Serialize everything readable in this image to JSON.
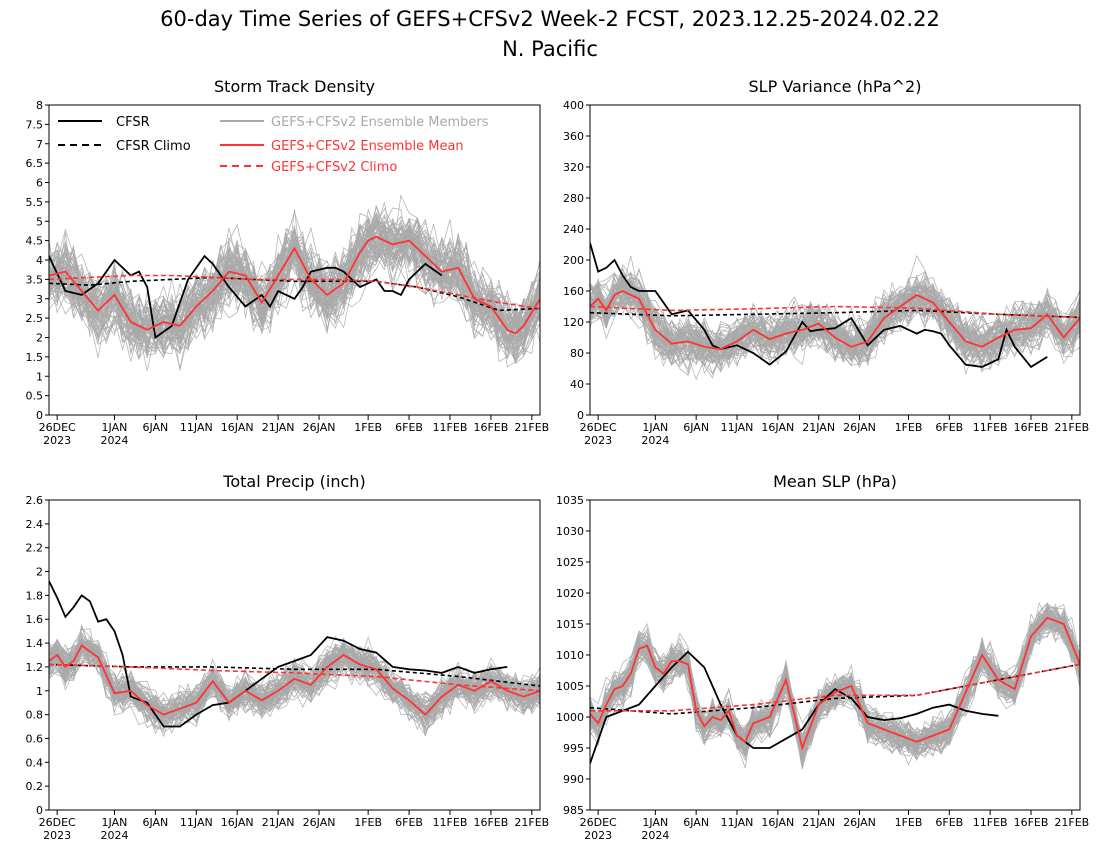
{
  "title": {
    "line1": "60-day Time Series of GEFS+CFSv2 Week-2 FCST, 2023.12.25-2024.02.22",
    "line2": "N. Pacific"
  },
  "x_axis": {
    "tick_days": [
      1,
      8,
      13,
      18,
      23,
      28,
      33,
      39,
      44,
      49,
      54,
      59
    ],
    "tick_labels": [
      "26DEC",
      "1JAN",
      "6JAN",
      "11JAN",
      "16JAN",
      "21JAN",
      "26JAN",
      "1FEB",
      "6FEB",
      "11FEB",
      "16FEB",
      "21FEB"
    ],
    "year_labels": [
      {
        "day": 1,
        "text": "2023"
      },
      {
        "day": 8,
        "text": "2024"
      }
    ]
  },
  "legend": {
    "cfsr": "CFSR",
    "cfsr_climo": "CFSR Climo",
    "members": "GEFS+CFSv2 Ensemble Members",
    "ens_mean": "GEFS+CFSv2 Ensemble Mean",
    "gefs_climo": "GEFS+CFSv2 Climo"
  },
  "colors": {
    "cfsr": "#000000",
    "members": "#a9a9a9",
    "ens_mean": "#ff3333"
  },
  "chart_data": [
    {
      "id": "storm",
      "type": "line",
      "title": "Storm Track Density",
      "ylim": [
        0,
        8
      ],
      "yticks": [
        "0",
        "0.5",
        "1",
        "1.5",
        "2",
        "2.5",
        "3",
        "3.5",
        "4",
        "4.5",
        "5",
        "5.5",
        "6",
        "6.5",
        "7",
        "7.5",
        "8"
      ],
      "x_unit": "day index from 2023-12-25",
      "series": [
        {
          "name": "CFSR",
          "style": "solid-black",
          "x": [
            0,
            2,
            4,
            6,
            8,
            10,
            11,
            12,
            13,
            15,
            17,
            19,
            20,
            22,
            24,
            26,
            27,
            28,
            30,
            31,
            32,
            34,
            35,
            36,
            38,
            40,
            41,
            42,
            43,
            44,
            46,
            48
          ],
          "y": [
            4.1,
            3.2,
            3.1,
            3.4,
            4.0,
            3.6,
            3.7,
            3.3,
            2.0,
            2.3,
            3.5,
            4.1,
            3.9,
            3.3,
            2.8,
            3.1,
            2.8,
            3.2,
            3.0,
            3.3,
            3.7,
            3.8,
            3.8,
            3.7,
            3.3,
            3.5,
            3.2,
            3.2,
            3.1,
            3.5,
            3.9,
            3.6
          ]
        },
        {
          "name": "CFSR Climo",
          "style": "dashed-black",
          "x": [
            0,
            5,
            10,
            15,
            20,
            25,
            30,
            35,
            40,
            45,
            50,
            55,
            60
          ],
          "y": [
            3.4,
            3.35,
            3.45,
            3.5,
            3.55,
            3.5,
            3.45,
            3.45,
            3.45,
            3.3,
            3.05,
            2.7,
            2.75
          ]
        },
        {
          "name": "GEFS+CFSv2 Ensemble Mean",
          "style": "solid-red",
          "x": [
            0,
            2,
            4,
            6,
            8,
            10,
            12,
            14,
            16,
            18,
            20,
            22,
            24,
            26,
            28,
            30,
            32,
            34,
            36,
            38,
            39,
            40,
            42,
            44,
            46,
            48,
            50,
            52,
            54,
            56,
            57,
            58,
            60
          ],
          "y": [
            3.6,
            3.7,
            3.2,
            2.7,
            3.1,
            2.4,
            2.2,
            2.4,
            2.3,
            2.8,
            3.2,
            3.7,
            3.6,
            2.9,
            3.6,
            4.3,
            3.5,
            3.1,
            3.4,
            4.2,
            4.5,
            4.6,
            4.4,
            4.5,
            4.1,
            3.7,
            3.8,
            3.0,
            2.8,
            2.2,
            2.1,
            2.3,
            3.0
          ]
        },
        {
          "name": "GEFS+CFSv2 Climo",
          "style": "dashed-red",
          "x": [
            0,
            5,
            10,
            15,
            20,
            25,
            30,
            35,
            40,
            45,
            50,
            55,
            60
          ],
          "y": [
            3.5,
            3.55,
            3.6,
            3.6,
            3.55,
            3.5,
            3.5,
            3.5,
            3.45,
            3.3,
            3.1,
            2.9,
            2.75
          ]
        }
      ]
    },
    {
      "id": "slp_var",
      "type": "line",
      "title": "SLP Variance (hPa^2)",
      "ylim": [
        0,
        400
      ],
      "yticks": [
        "0",
        "40",
        "80",
        "120",
        "160",
        "200",
        "240",
        "280",
        "320",
        "360",
        "400"
      ],
      "x_unit": "day index from 2023-12-25",
      "series": [
        {
          "name": "CFSR",
          "style": "solid-black",
          "x": [
            0,
            1,
            2,
            3,
            4,
            5,
            6,
            8,
            9,
            10,
            12,
            14,
            15,
            16,
            18,
            20,
            22,
            24,
            26,
            27,
            28,
            30,
            32,
            34,
            36,
            38,
            40,
            41,
            42,
            43,
            44,
            46,
            48,
            50,
            51,
            52,
            54,
            56
          ],
          "y": [
            222,
            185,
            190,
            200,
            180,
            165,
            160,
            160,
            145,
            130,
            135,
            110,
            90,
            85,
            90,
            80,
            65,
            82,
            120,
            108,
            110,
            112,
            125,
            90,
            110,
            115,
            105,
            110,
            108,
            105,
            90,
            65,
            62,
            72,
            110,
            88,
            62,
            75
          ]
        },
        {
          "name": "CFSR Climo",
          "style": "dashed-black",
          "x": [
            0,
            10,
            20,
            30,
            40,
            50,
            60
          ],
          "y": [
            132,
            128,
            130,
            132,
            135,
            130,
            126
          ]
        },
        {
          "name": "GEFS+CFSv2 Ensemble Mean",
          "style": "solid-red",
          "x": [
            0,
            1,
            2,
            3,
            4,
            6,
            8,
            10,
            12,
            14,
            16,
            18,
            20,
            22,
            24,
            26,
            28,
            30,
            32,
            34,
            36,
            38,
            40,
            42,
            44,
            46,
            48,
            50,
            52,
            54,
            56,
            58,
            60
          ],
          "y": [
            140,
            150,
            135,
            155,
            160,
            150,
            110,
            92,
            95,
            88,
            85,
            95,
            110,
            98,
            105,
            110,
            118,
            100,
            88,
            95,
            125,
            140,
            155,
            145,
            120,
            95,
            88,
            100,
            110,
            112,
            130,
            100,
            125
          ]
        },
        {
          "name": "GEFS+CFSv2 Climo",
          "style": "dashed-red",
          "x": [
            0,
            10,
            20,
            30,
            40,
            50,
            60
          ],
          "y": [
            140,
            135,
            137,
            140,
            138,
            130,
            126
          ]
        }
      ]
    },
    {
      "id": "precip",
      "type": "line",
      "title": "Total Precip (inch)",
      "ylim": [
        0,
        2.6
      ],
      "yticks": [
        "0",
        "0.2",
        "0.4",
        "0.6",
        "0.8",
        "1",
        "1.2",
        "1.4",
        "1.6",
        "1.8",
        "2",
        "2.2",
        "2.4",
        "2.6"
      ],
      "x_unit": "day index from 2023-12-25",
      "series": [
        {
          "name": "CFSR",
          "style": "solid-black",
          "x": [
            0,
            1,
            2,
            3,
            4,
            5,
            6,
            7,
            8,
            9,
            10,
            12,
            14,
            16,
            18,
            20,
            22,
            24,
            26,
            28,
            30,
            32,
            34,
            36,
            38,
            40,
            42,
            44,
            46,
            48,
            50,
            52,
            54,
            56
          ],
          "y": [
            1.92,
            1.78,
            1.62,
            1.7,
            1.8,
            1.75,
            1.58,
            1.6,
            1.5,
            1.3,
            0.95,
            0.9,
            0.7,
            0.7,
            0.8,
            0.88,
            0.9,
            1.0,
            1.1,
            1.2,
            1.25,
            1.3,
            1.45,
            1.42,
            1.35,
            1.32,
            1.2,
            1.18,
            1.17,
            1.15,
            1.2,
            1.15,
            1.18,
            1.2
          ]
        },
        {
          "name": "CFSR Climo",
          "style": "dashed-black",
          "x": [
            0,
            10,
            20,
            30,
            40,
            50,
            60
          ],
          "y": [
            1.22,
            1.2,
            1.2,
            1.18,
            1.18,
            1.12,
            1.04
          ]
        },
        {
          "name": "GEFS+CFSv2 Ensemble Mean",
          "style": "solid-red",
          "x": [
            0,
            1,
            2,
            3,
            4,
            6,
            8,
            10,
            12,
            14,
            16,
            18,
            20,
            22,
            24,
            26,
            28,
            30,
            32,
            34,
            36,
            38,
            40,
            42,
            44,
            46,
            48,
            50,
            52,
            54,
            56,
            58,
            60
          ],
          "y": [
            1.25,
            1.3,
            1.2,
            1.25,
            1.38,
            1.28,
            0.98,
            1.0,
            0.88,
            0.8,
            0.85,
            0.9,
            1.08,
            0.9,
            1.0,
            0.92,
            1.0,
            1.1,
            1.05,
            1.2,
            1.3,
            1.22,
            1.18,
            1.02,
            0.92,
            0.8,
            0.95,
            1.05,
            1.0,
            1.08,
            1.0,
            0.95,
            1.0
          ]
        },
        {
          "name": "GEFS+CFSv2 Climo",
          "style": "dashed-red",
          "x": [
            0,
            10,
            20,
            30,
            40,
            50,
            60
          ],
          "y": [
            1.22,
            1.2,
            1.17,
            1.15,
            1.12,
            1.05,
            1.0
          ]
        }
      ]
    },
    {
      "id": "mean_slp",
      "type": "line",
      "title": "Mean SLP (hPa)",
      "ylim": [
        985,
        1035
      ],
      "yticks": [
        "985",
        "990",
        "995",
        "1000",
        "1005",
        "1010",
        "1015",
        "1020",
        "1025",
        "1030",
        "1035"
      ],
      "x_unit": "day index from 2023-12-25",
      "series": [
        {
          "name": "CFSR",
          "style": "solid-black",
          "x": [
            0,
            2,
            4,
            6,
            8,
            10,
            12,
            14,
            16,
            18,
            20,
            22,
            24,
            26,
            28,
            30,
            32,
            34,
            36,
            38,
            40,
            42,
            44,
            46,
            48,
            50
          ],
          "y": [
            992.5,
            1000,
            1001,
            1002,
            1005,
            1008,
            1010.5,
            1008,
            1002,
            997,
            995,
            995,
            996.5,
            998,
            1002,
            1004.5,
            1003,
            1000,
            999.5,
            999.8,
            1000.5,
            1001.5,
            1002,
            1001,
            1000.5,
            1000.2
          ]
        },
        {
          "name": "CFSR Climo",
          "style": "dashed-black",
          "x": [
            0,
            10,
            20,
            30,
            40,
            50,
            60
          ],
          "y": [
            1001.5,
            1000.5,
            1001.5,
            1003,
            1003.5,
            1006,
            1008.5
          ]
        },
        {
          "name": "GEFS+CFSv2 Ensemble Mean",
          "style": "solid-red",
          "x": [
            0,
            1,
            2,
            3,
            4,
            5,
            6,
            7,
            8,
            9,
            10,
            11,
            12,
            13,
            14,
            15,
            16,
            17,
            18,
            19,
            20,
            22,
            24,
            26,
            28,
            30,
            32,
            34,
            36,
            38,
            40,
            42,
            44,
            46,
            48,
            50,
            52,
            54,
            56,
            58,
            60
          ],
          "y": [
            1000.5,
            999,
            1002,
            1004.5,
            1005,
            1007,
            1011,
            1011.5,
            1008,
            1007,
            1009,
            1009,
            1008.5,
            1001,
            998.5,
            1000,
            999.5,
            1001,
            997,
            996,
            999,
            1000,
            1006,
            995,
            1002,
            1004,
            1005,
            999,
            998,
            997,
            996,
            997,
            998,
            1004,
            1010,
            1006,
            1004.5,
            1013,
            1016,
            1015,
            1008.5
          ]
        },
        {
          "name": "GEFS+CFSv2 Climo",
          "style": "dashed-red",
          "x": [
            0,
            10,
            20,
            30,
            40,
            50,
            60
          ],
          "y": [
            1001,
            1001,
            1002,
            1003.5,
            1003.5,
            1006,
            1008.5
          ]
        }
      ]
    }
  ]
}
